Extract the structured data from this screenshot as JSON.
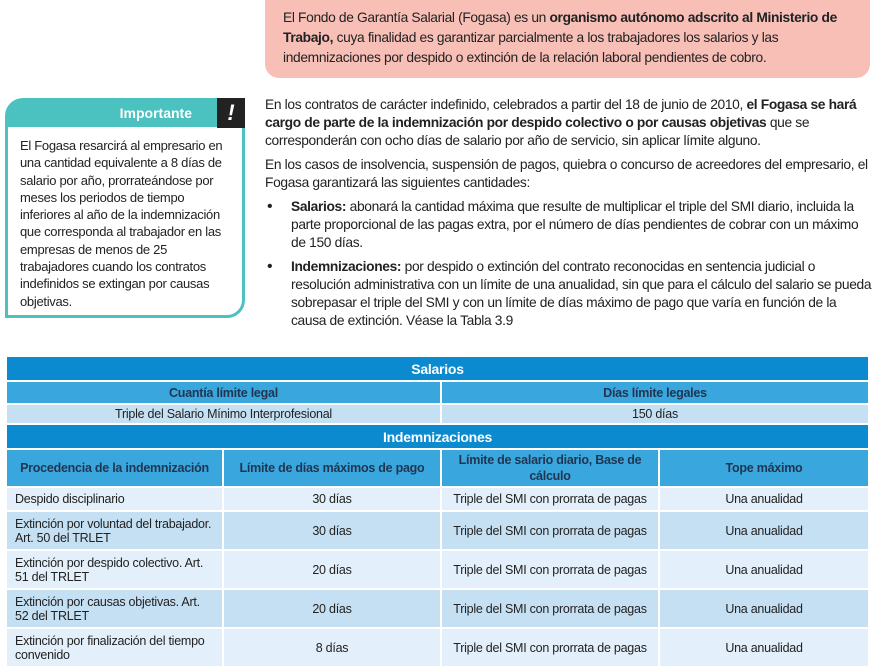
{
  "intro": {
    "pre": "El Fondo de Garantía Salarial (Fogasa) es un ",
    "bold": "organismo autónomo adscrito al Ministerio de Trabajo,",
    "post": " cuya finalidad es garantizar parcialmente a los trabajadores los salarios y las indemnizaciones por despido o extinción de la relación laboral pendientes de cobro."
  },
  "important": {
    "title": "Importante",
    "icon": "exclamation-icon",
    "glyph": "!",
    "text": "El Fogasa resarcirá al empresario en una cantidad equivalente a 8 días de salario por año, prorrateándose por meses los periodos de tiempo inferiores al año de la indemnización que corresponda al trabajador en las empresas de menos de 25 trabajadores cuando los contratos indefinidos se extingan por causas objetivas."
  },
  "body": {
    "p1_pre": "En los contratos de carácter indefinido, celebrados a partir del 18 de junio de 2010, ",
    "p1_bold": "el Fogasa se hará cargo de parte de la indemnización por despido colectivo o por causas objetivas",
    "p1_post": " que se corresponderán con ocho días de salario por año de servicio, sin aplicar límite alguno.",
    "p2": "En los casos de insolvencia, suspensión de pagos, quiebra o concurso de acreedores del empresario, el Fogasa garantizará las siguientes cantidades:",
    "bullets": [
      {
        "bold": "Salarios:",
        "text": " abonará la cantidad máxima que resulte de multiplicar el triple del SMI diario, incluida la parte proporcional de las pagas extra, por el número de días pendientes de cobrar con un máximo de 150 días."
      },
      {
        "bold": "Indemnizaciones:",
        "text": " por despido o extinción del contrato reconocidas en sentencia judicial o resolución administrativa con un límite de una anualidad, sin que para el cálculo del salario se pueda sobrepasar el triple del SMI y con un límite de días máximo de pago que varía en función de la causa de extinción. Véase la Tabla 3.9"
      }
    ]
  },
  "table": {
    "salarios": {
      "title": "Salarios",
      "headers": [
        "Cuantía límite legal",
        "Días límite legales"
      ],
      "row": [
        "Triple del Salario Mínimo Interprofesional",
        "150 días"
      ]
    },
    "indem": {
      "title": "Indemnizaciones",
      "headers": [
        "Procedencia de la indemnización",
        "Límite de días máximos de pago",
        "Límite de salario diario, Base de cálculo",
        "Tope máximo"
      ],
      "rows": [
        [
          "Despido disciplinario",
          "30 días",
          "Triple del SMI con prorrata de pagas",
          "Una anualidad"
        ],
        [
          "Extinción por voluntad del trabajador. Art. 50 del TRLET",
          "30 días",
          "Triple del SMI con prorrata de pagas",
          "Una anualidad"
        ],
        [
          "Extinción por despido colectivo. Art. 51 del TRLET",
          "20 días",
          "Triple del SMI con prorrata de pagas",
          "Una anualidad"
        ],
        [
          "Extinción por causas objetivas. Art. 52 del TRLET",
          "20 días",
          "Triple del SMI con prorrata de pagas",
          "Una anualidad"
        ],
        [
          "Extinción por finalización del tiempo convenido",
          "8 días",
          "Triple del SMI con prorrata de pagas",
          "Una anualidad"
        ]
      ]
    }
  },
  "colors": {
    "band": "#0b8ad0",
    "header": "#3aa6de",
    "row_light": "#e3effa",
    "row_dark": "#c6e0f3",
    "callout": "#f7bfb6",
    "important": "#4cc2c0"
  }
}
